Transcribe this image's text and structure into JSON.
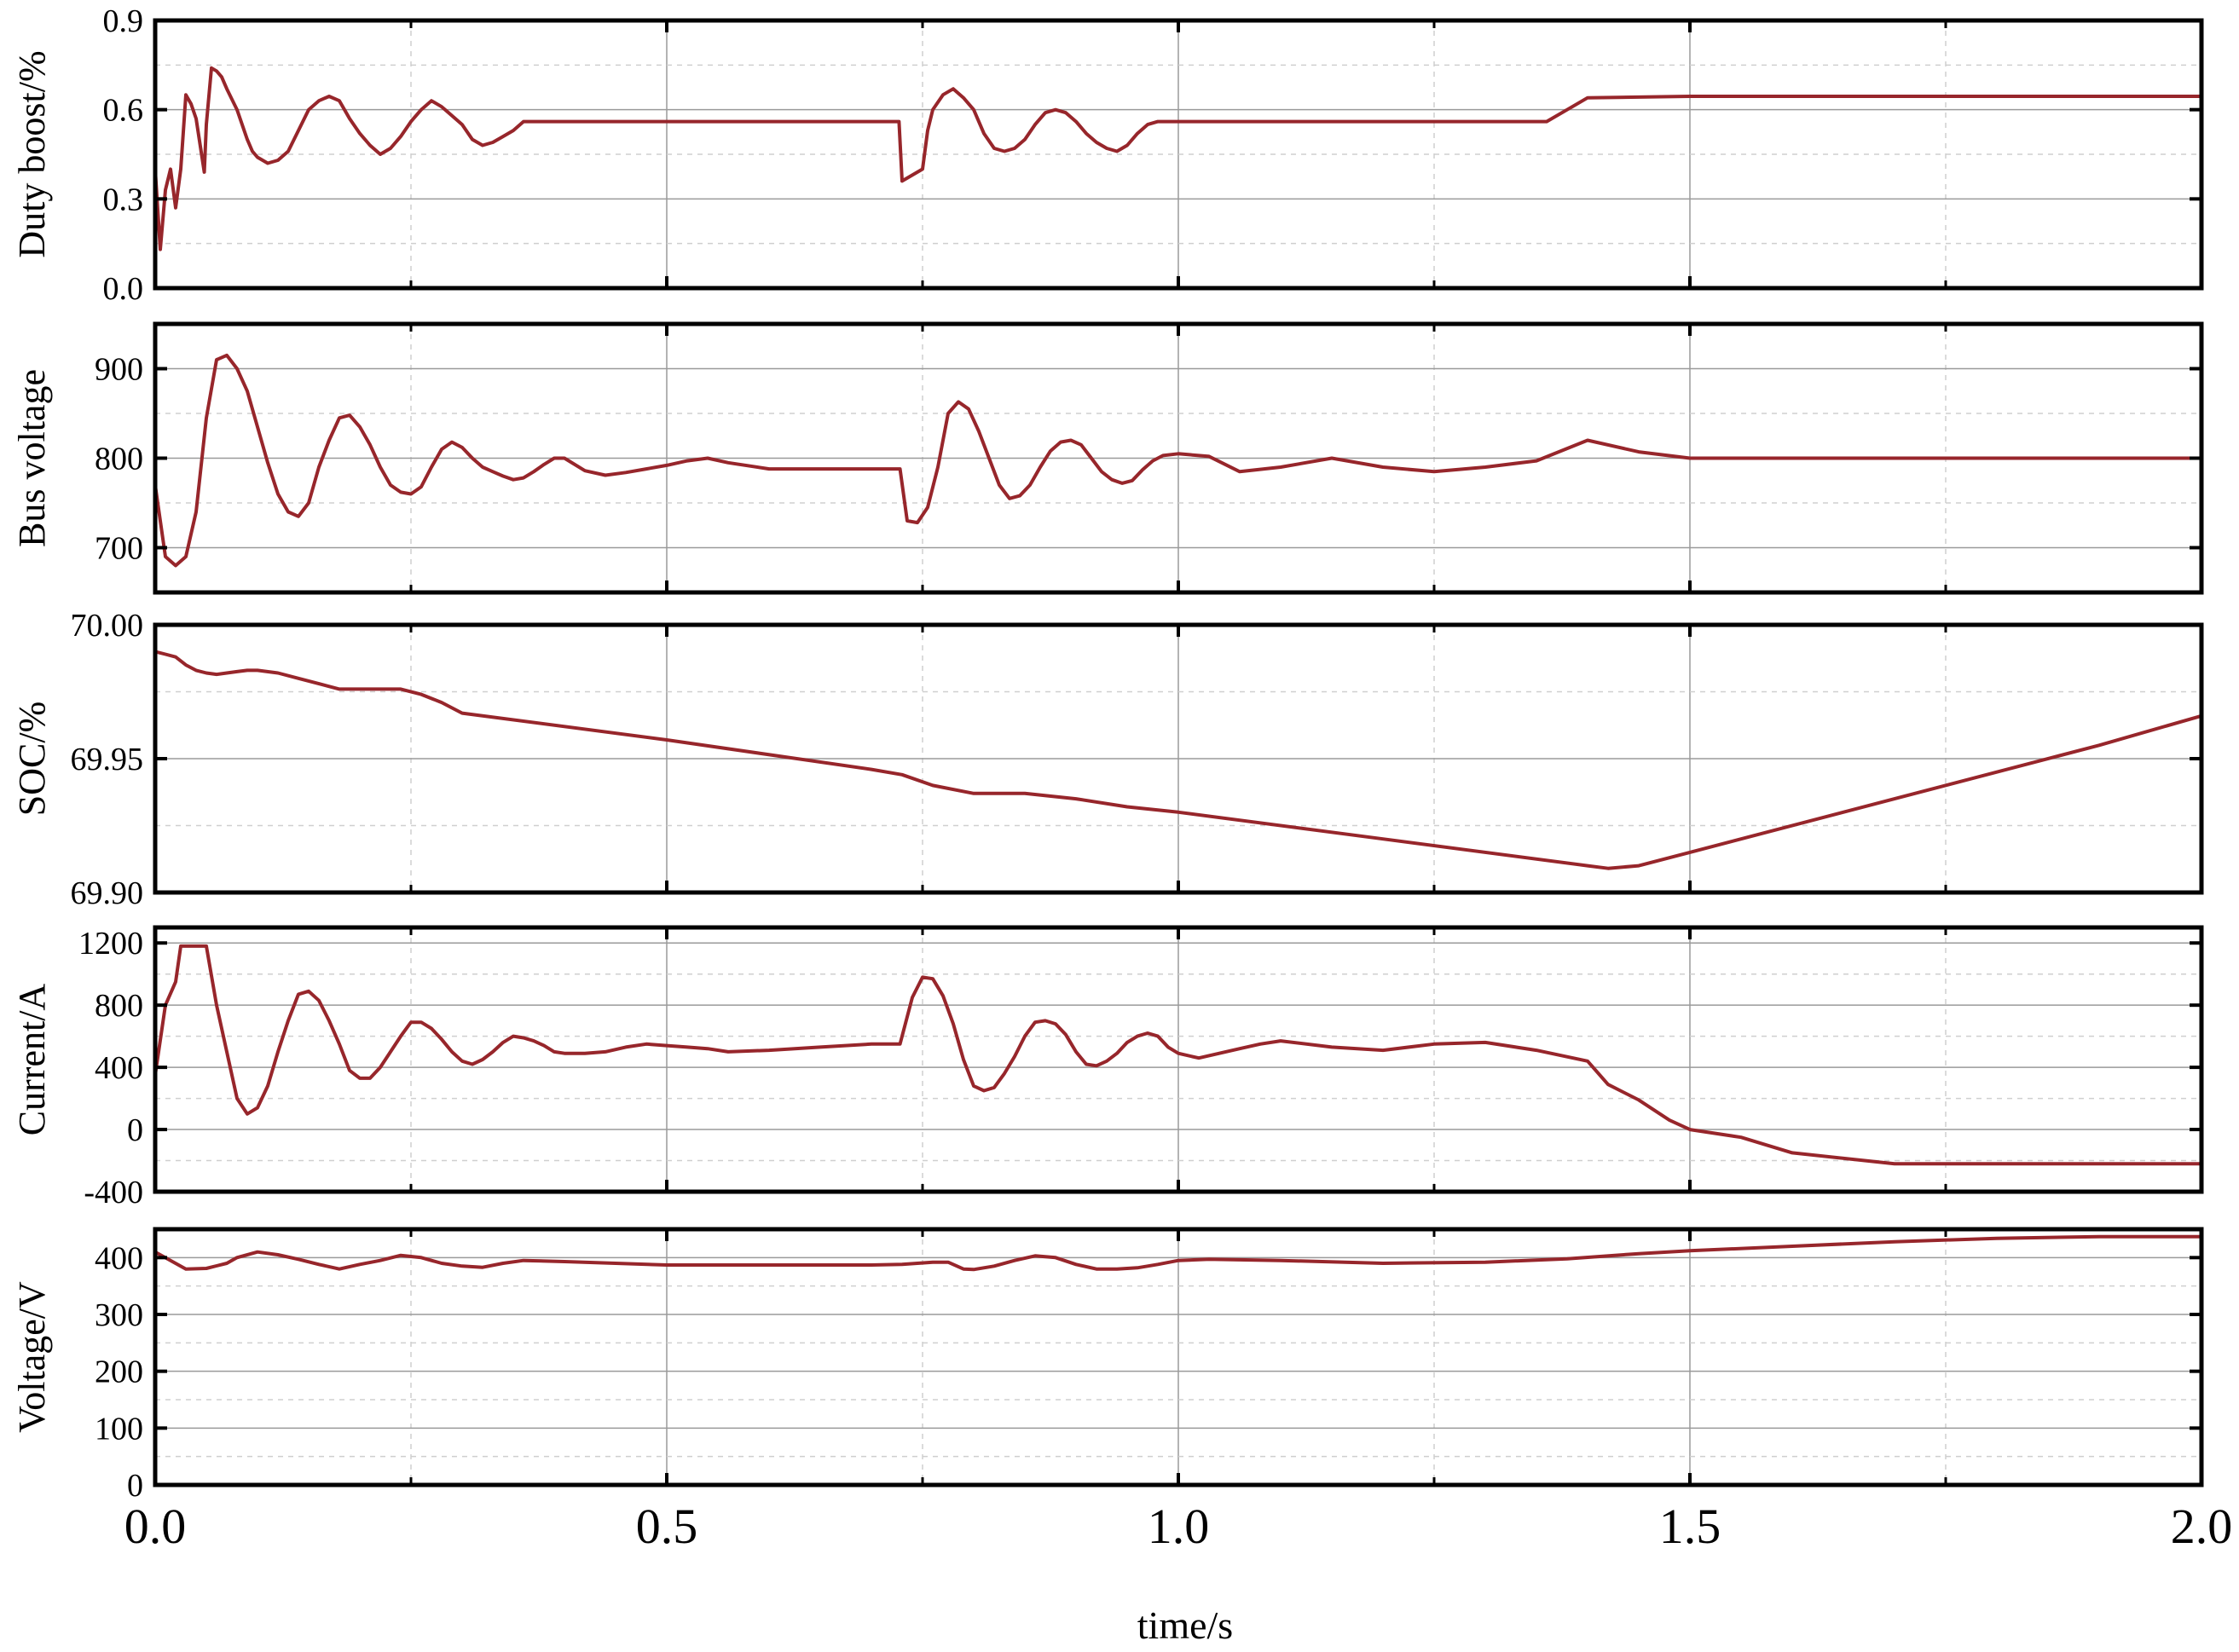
{
  "chart_data": [
    {
      "type": "line",
      "ylabel": "Duty boost/%",
      "xlim": [
        0,
        2.0
      ],
      "ylim": [
        0,
        0.9
      ],
      "yticks": [
        0,
        0.3,
        0.6,
        0.9
      ],
      "ytick_labels": [
        "0.0",
        "0.3",
        "0.6",
        "0.9"
      ],
      "color": "#97262b",
      "grid": true,
      "series": [
        {
          "x": [
            0,
            0.005,
            0.01,
            0.015,
            0.02,
            0.025,
            0.03,
            0.035,
            0.04,
            0.048,
            0.05,
            0.055,
            0.06,
            0.065,
            0.07,
            0.08,
            0.09,
            0.095,
            0.1,
            0.11,
            0.12,
            0.13,
            0.14,
            0.15,
            0.16,
            0.17,
            0.18,
            0.19,
            0.2,
            0.21,
            0.22,
            0.23,
            0.24,
            0.25,
            0.26,
            0.27,
            0.28,
            0.29,
            0.3,
            0.31,
            0.32,
            0.33,
            0.34,
            0.35,
            0.36,
            0.37,
            0.38,
            0.39,
            0.4,
            0.5,
            0.6,
            0.7,
            0.727,
            0.73,
            0.74,
            0.75,
            0.755,
            0.76,
            0.77,
            0.78,
            0.79,
            0.8,
            0.81,
            0.82,
            0.83,
            0.84,
            0.85,
            0.86,
            0.87,
            0.88,
            0.89,
            0.9,
            0.91,
            0.92,
            0.93,
            0.94,
            0.95,
            0.96,
            0.97,
            0.98,
            0.99,
            1.0,
            1.1,
            1.2,
            1.3,
            1.36,
            1.38,
            1.4,
            1.5,
            1.6,
            1.7,
            1.8,
            1.9,
            2.0
          ],
          "y": [
            0.4,
            0.13,
            0.33,
            0.4,
            0.27,
            0.4,
            0.65,
            0.62,
            0.57,
            0.39,
            0.55,
            0.74,
            0.73,
            0.71,
            0.67,
            0.6,
            0.5,
            0.46,
            0.44,
            0.42,
            0.43,
            0.46,
            0.53,
            0.6,
            0.63,
            0.645,
            0.63,
            0.57,
            0.52,
            0.48,
            0.45,
            0.47,
            0.51,
            0.56,
            0.6,
            0.63,
            0.61,
            0.58,
            0.55,
            0.5,
            0.48,
            0.49,
            0.51,
            0.53,
            0.56,
            0.56,
            0.56,
            0.56,
            0.56,
            0.56,
            0.56,
            0.56,
            0.56,
            0.36,
            0.38,
            0.4,
            0.53,
            0.6,
            0.65,
            0.67,
            0.64,
            0.6,
            0.52,
            0.47,
            0.46,
            0.47,
            0.5,
            0.55,
            0.59,
            0.6,
            0.59,
            0.56,
            0.52,
            0.49,
            0.47,
            0.46,
            0.48,
            0.52,
            0.55,
            0.56,
            0.56,
            0.56,
            0.56,
            0.56,
            0.56,
            0.56,
            0.6,
            0.64,
            0.645,
            0.645,
            0.645,
            0.645,
            0.645,
            0.645
          ]
        }
      ]
    },
    {
      "type": "line",
      "ylabel": "Bus voltage",
      "xlim": [
        0,
        2.0
      ],
      "ylim": [
        650,
        950
      ],
      "yticks": [
        700,
        800,
        900
      ],
      "ytick_labels": [
        "700",
        "800",
        "900"
      ],
      "color": "#97262b",
      "grid": true,
      "series": [
        {
          "x": [
            0,
            0.01,
            0.02,
            0.03,
            0.04,
            0.05,
            0.06,
            0.07,
            0.08,
            0.09,
            0.1,
            0.11,
            0.12,
            0.13,
            0.14,
            0.15,
            0.16,
            0.17,
            0.18,
            0.19,
            0.2,
            0.21,
            0.22,
            0.23,
            0.24,
            0.25,
            0.26,
            0.27,
            0.28,
            0.29,
            0.3,
            0.31,
            0.32,
            0.33,
            0.34,
            0.35,
            0.36,
            0.37,
            0.38,
            0.39,
            0.4,
            0.42,
            0.44,
            0.46,
            0.48,
            0.5,
            0.52,
            0.54,
            0.56,
            0.6,
            0.65,
            0.7,
            0.728,
            0.735,
            0.745,
            0.755,
            0.765,
            0.775,
            0.785,
            0.795,
            0.805,
            0.815,
            0.825,
            0.835,
            0.845,
            0.855,
            0.865,
            0.875,
            0.885,
            0.895,
            0.905,
            0.915,
            0.925,
            0.935,
            0.945,
            0.955,
            0.965,
            0.975,
            0.985,
            1.0,
            1.03,
            1.06,
            1.1,
            1.15,
            1.2,
            1.25,
            1.3,
            1.35,
            1.4,
            1.45,
            1.5,
            1.55,
            1.6,
            1.7,
            1.8,
            1.9,
            2.0
          ],
          "y": [
            770,
            690,
            680,
            690,
            740,
            845,
            910,
            915,
            900,
            875,
            835,
            795,
            760,
            740,
            735,
            750,
            790,
            820,
            845,
            848,
            835,
            815,
            790,
            770,
            762,
            760,
            768,
            790,
            810,
            818,
            812,
            800,
            790,
            785,
            780,
            776,
            778,
            785,
            793,
            800,
            800,
            786,
            781,
            784,
            788,
            792,
            797,
            800,
            795,
            788,
            788,
            788,
            788,
            730,
            728,
            745,
            790,
            850,
            863,
            855,
            830,
            800,
            770,
            755,
            758,
            770,
            790,
            808,
            818,
            820,
            815,
            800,
            785,
            776,
            772,
            775,
            787,
            797,
            803,
            805,
            802,
            785,
            790,
            800,
            790,
            785,
            790,
            797,
            820,
            807,
            800,
            800,
            800,
            800,
            800,
            800,
            800
          ]
        }
      ]
    },
    {
      "type": "line",
      "ylabel": "SOC/%",
      "xlim": [
        0,
        2.0
      ],
      "ylim": [
        69.9,
        70.0
      ],
      "yticks": [
        69.9,
        69.95,
        70.0
      ],
      "ytick_labels": [
        "69.90",
        "69.95",
        "70.00"
      ],
      "color": "#97262b",
      "grid": true,
      "series": [
        {
          "x": [
            0,
            0.01,
            0.02,
            0.03,
            0.04,
            0.05,
            0.06,
            0.07,
            0.08,
            0.09,
            0.1,
            0.12,
            0.14,
            0.16,
            0.18,
            0.2,
            0.22,
            0.24,
            0.26,
            0.28,
            0.3,
            0.5,
            0.7,
            0.73,
            0.76,
            0.8,
            0.85,
            0.9,
            0.95,
            1.0,
            1.2,
            1.4,
            1.42,
            1.45,
            1.5,
            1.7,
            1.9,
            2.0
          ],
          "y": [
            69.99,
            69.989,
            69.988,
            69.985,
            69.983,
            69.982,
            69.9815,
            69.982,
            69.9825,
            69.983,
            69.983,
            69.982,
            69.98,
            69.978,
            69.976,
            69.976,
            69.976,
            69.976,
            69.974,
            69.971,
            69.967,
            69.957,
            69.946,
            69.944,
            69.94,
            69.937,
            69.937,
            69.935,
            69.932,
            69.93,
            69.92,
            69.91,
            69.909,
            69.91,
            69.915,
            69.935,
            69.955,
            69.966
          ]
        }
      ]
    },
    {
      "type": "line",
      "ylabel": "Current/A",
      "xlim": [
        0,
        2.0
      ],
      "ylim": [
        -400,
        1300
      ],
      "yticks": [
        -400,
        0,
        400,
        800,
        1200
      ],
      "ytick_labels": [
        "-400",
        "0",
        "400",
        "800",
        "1200"
      ],
      "color": "#97262b",
      "grid": true,
      "series": [
        {
          "x": [
            0,
            0.01,
            0.02,
            0.025,
            0.03,
            0.05,
            0.06,
            0.07,
            0.08,
            0.09,
            0.1,
            0.11,
            0.12,
            0.13,
            0.14,
            0.15,
            0.16,
            0.17,
            0.18,
            0.19,
            0.2,
            0.21,
            0.22,
            0.23,
            0.24,
            0.25,
            0.26,
            0.27,
            0.28,
            0.29,
            0.3,
            0.31,
            0.32,
            0.33,
            0.34,
            0.35,
            0.36,
            0.37,
            0.38,
            0.39,
            0.4,
            0.42,
            0.44,
            0.46,
            0.48,
            0.5,
            0.52,
            0.54,
            0.56,
            0.6,
            0.65,
            0.7,
            0.728,
            0.74,
            0.75,
            0.76,
            0.77,
            0.78,
            0.79,
            0.8,
            0.81,
            0.82,
            0.83,
            0.84,
            0.85,
            0.86,
            0.87,
            0.88,
            0.89,
            0.9,
            0.91,
            0.92,
            0.93,
            0.94,
            0.95,
            0.96,
            0.97,
            0.98,
            0.99,
            1.0,
            1.02,
            1.04,
            1.06,
            1.08,
            1.1,
            1.15,
            1.2,
            1.25,
            1.3,
            1.35,
            1.4,
            1.42,
            1.45,
            1.48,
            1.5,
            1.55,
            1.6,
            1.7,
            1.8,
            1.9,
            2.0
          ],
          "y": [
            350,
            800,
            950,
            1180,
            1180,
            1180,
            800,
            500,
            200,
            100,
            140,
            280,
            500,
            700,
            870,
            890,
            830,
            700,
            550,
            380,
            330,
            330,
            400,
            500,
            600,
            690,
            690,
            650,
            580,
            500,
            440,
            420,
            450,
            500,
            560,
            600,
            590,
            570,
            540,
            500,
            490,
            490,
            500,
            530,
            550,
            540,
            530,
            520,
            500,
            510,
            530,
            550,
            550,
            850,
            980,
            970,
            860,
            680,
            450,
            280,
            250,
            270,
            360,
            470,
            600,
            690,
            700,
            680,
            610,
            500,
            420,
            410,
            440,
            490,
            560,
            600,
            620,
            600,
            530,
            490,
            460,
            490,
            520,
            550,
            570,
            530,
            510,
            550,
            560,
            510,
            440,
            290,
            190,
            60,
            0,
            -50,
            -150,
            -220,
            -220,
            -220,
            -220
          ]
        }
      ]
    },
    {
      "type": "line",
      "ylabel": "Voltage/V",
      "xlim": [
        0,
        2.0
      ],
      "ylim": [
        0,
        450
      ],
      "yticks": [
        0,
        100,
        200,
        300,
        400
      ],
      "ytick_labels": [
        "0",
        "100",
        "200",
        "300",
        "400"
      ],
      "color": "#97262b",
      "grid": true,
      "series": [
        {
          "x": [
            0,
            0.03,
            0.05,
            0.07,
            0.08,
            0.1,
            0.12,
            0.14,
            0.16,
            0.18,
            0.2,
            0.22,
            0.24,
            0.26,
            0.28,
            0.3,
            0.32,
            0.34,
            0.36,
            0.4,
            0.5,
            0.6,
            0.7,
            0.73,
            0.745,
            0.76,
            0.775,
            0.79,
            0.8,
            0.82,
            0.84,
            0.86,
            0.88,
            0.9,
            0.92,
            0.94,
            0.96,
            0.98,
            1.0,
            1.03,
            1.1,
            1.2,
            1.3,
            1.38,
            1.45,
            1.5,
            1.6,
            1.7,
            1.8,
            1.9,
            2.0
          ],
          "y": [
            410,
            380,
            381,
            390,
            400,
            410,
            405,
            397,
            388,
            380,
            388,
            395,
            404,
            400,
            390,
            385,
            383,
            390,
            395,
            393,
            387,
            387,
            387,
            388,
            390,
            392,
            392,
            380,
            379,
            385,
            395,
            403,
            400,
            388,
            380,
            380,
            382,
            388,
            395,
            397,
            395,
            390,
            392,
            398,
            407,
            412,
            420,
            428,
            434,
            437,
            437
          ]
        }
      ]
    }
  ],
  "xaxis": {
    "label": "time/s",
    "ticks": [
      0,
      0.5,
      1.0,
      1.5,
      2.0
    ],
    "tick_labels": [
      "0.0",
      "0.5",
      "1.0",
      "1.5",
      "2.0"
    ]
  }
}
